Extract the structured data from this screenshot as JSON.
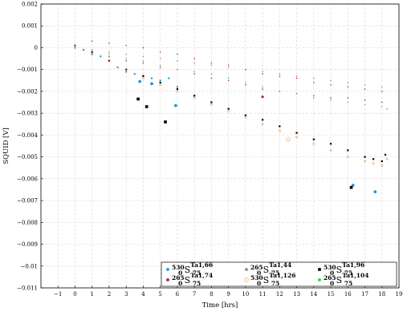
{
  "chart_data": {
    "type": "scatter",
    "xlabel": "Time [hrs]",
    "ylabel": "SQUID [V]",
    "xlim": [
      -2,
      19
    ],
    "ylim": [
      -0.011,
      0.002
    ],
    "x_ticks": [
      -1,
      0,
      1,
      2,
      3,
      4,
      5,
      6,
      7,
      8,
      9,
      10,
      11,
      12,
      13,
      14,
      15,
      16,
      17,
      18,
      19
    ],
    "y_ticks": [
      0.002,
      0.001,
      0,
      -0.001,
      -0.002,
      -0.003,
      -0.004,
      -0.005,
      -0.006,
      -0.007,
      -0.008,
      -0.009,
      -0.01,
      -0.011
    ],
    "x_tick_labels": [
      "−1",
      "0",
      "1",
      "2",
      "3",
      "4",
      "5",
      "6",
      "7",
      "8",
      "9",
      "10",
      "11",
      "12",
      "13",
      "14",
      "15",
      "16",
      "17",
      "18",
      "19"
    ],
    "y_tick_labels": [
      "0.002",
      "0.001",
      "0",
      "−0.001",
      "−0.002",
      "−0.003",
      "−0.004",
      "−0.005",
      "−0.006",
      "−0.007",
      "−0.008",
      "−0.009",
      "−0.01",
      "−0.011"
    ],
    "grid": true,
    "legend_position": "bottom-right",
    "series": [
      {
        "name": "530 0 S 75 Ta1,66",
        "label_parts": [
          "530",
          "0",
          "S",
          "Ta1,66",
          "75"
        ],
        "color": "#1e9bd7",
        "marker": "circle",
        "x": [
          0,
          0.5,
          1,
          1.5,
          2,
          2.5,
          3,
          3.5,
          4,
          4.5,
          5,
          5.5,
          6
        ],
        "y": [
          0,
          -0.0001,
          -0.0003,
          -0.0004,
          -0.0006,
          -0.0009,
          -0.0011,
          -0.0012,
          -0.0013,
          -0.0014,
          -0.0015,
          -0.0014,
          -0.0018
        ],
        "outliers": [
          [
            3.8,
            -0.00155
          ],
          [
            4.5,
            -0.00165
          ],
          [
            5.9,
            -0.00265
          ],
          [
            16.3,
            -0.0063
          ],
          [
            17.6,
            -0.0066
          ]
        ]
      },
      {
        "name": "265 0 S 75 Ta1,44",
        "label_parts": [
          "265",
          "0",
          "S",
          "Ta1,44",
          "75"
        ],
        "color": "#8a8a8a",
        "marker": "dot",
        "x": [
          0,
          1,
          2,
          3,
          4,
          5,
          6,
          7,
          8,
          9,
          10,
          11,
          12,
          13,
          14,
          15,
          16,
          17,
          18
        ],
        "y": [
          0,
          -0.0001,
          -0.0002,
          -0.0003,
          -0.0004,
          -0.0005,
          -0.0006,
          -0.0007,
          -0.0008,
          -0.0009,
          -0.001,
          -0.0011,
          -0.0012,
          -0.0013,
          -0.0014,
          -0.0015,
          -0.0016,
          -0.0017,
          -0.0018
        ]
      },
      {
        "name": "530 0 S 75 Ta1,96",
        "label_parts": [
          "530",
          "0",
          "S",
          "Ta1,96",
          "75"
        ],
        "color": "#000000",
        "marker": "square",
        "x": [
          0,
          1,
          2,
          3,
          4,
          5,
          6,
          7,
          8,
          9,
          10,
          11,
          12,
          13,
          14,
          15,
          16,
          17,
          17.5,
          18,
          18.2
        ],
        "y": [
          0.0001,
          -0.0002,
          -0.0006,
          -0.001,
          -0.0013,
          -0.0016,
          -0.0019,
          -0.0022,
          -0.0025,
          -0.0028,
          -0.0031,
          -0.0033,
          -0.0036,
          -0.0039,
          -0.0042,
          -0.0044,
          -0.0047,
          -0.005,
          -0.0051,
          -0.0052,
          -0.0049
        ],
        "outliers": [
          [
            3.7,
            -0.00235
          ],
          [
            4.2,
            -0.0027
          ],
          [
            5.3,
            -0.0034
          ],
          [
            16.2,
            -0.0064
          ]
        ]
      },
      {
        "name": "265 0 S 75 Ta1,74",
        "label_parts": [
          "265",
          "0",
          "S",
          "Ta1,74",
          "75"
        ],
        "color": "#b5175e",
        "marker": "dot",
        "x": [
          0,
          1,
          2,
          3,
          4,
          5,
          6,
          7,
          8,
          9,
          10,
          11,
          12,
          13,
          14,
          15,
          16,
          17,
          18
        ],
        "y": [
          0,
          -0.0002,
          -0.0004,
          -0.0006,
          -0.0007,
          -0.0009,
          -0.001,
          -0.0012,
          -0.0014,
          -0.0015,
          -0.0017,
          -0.0019,
          -0.002,
          -0.0021,
          -0.0022,
          -0.0023,
          -0.0023,
          -0.0024,
          -0.0025
        ],
        "outliers": [
          [
            11,
            -0.00225
          ]
        ]
      },
      {
        "name": "530 0 S 75 Ta1,126",
        "label_parts": [
          "530",
          "0",
          "S",
          "Ta1,126",
          "75"
        ],
        "color": "#f5a35a",
        "marker": "diamond",
        "x": [
          0,
          1,
          2,
          3,
          4,
          5,
          6,
          7,
          8,
          9,
          10,
          11,
          12,
          13,
          14,
          15,
          16,
          17,
          17.5,
          18,
          18.3
        ],
        "y": [
          0.0001,
          -0.0003,
          -0.0006,
          -0.001,
          -0.0014,
          -0.0017,
          -0.002,
          -0.0023,
          -0.0026,
          -0.0029,
          -0.0032,
          -0.0035,
          -0.0038,
          -0.0041,
          -0.0044,
          -0.0047,
          -0.005,
          -0.0052,
          -0.0053,
          -0.0054,
          -0.0051
        ],
        "outliers": [
          [
            12.5,
            -0.0042
          ]
        ]
      },
      {
        "name": "265 0 S 75 Ta1,104",
        "label_parts": [
          "265",
          "0",
          "S",
          "Ta1,104",
          "75"
        ],
        "color": "#2ecc2e",
        "marker": "dot",
        "x": [
          0,
          1,
          2,
          3,
          4,
          5,
          6,
          7,
          8,
          9,
          10,
          11,
          12,
          13,
          14,
          15,
          16,
          17,
          18,
          18.3
        ],
        "y": [
          0,
          -0.0001,
          -0.0003,
          -0.0005,
          -0.0006,
          -0.0008,
          -0.001,
          -0.0011,
          -0.0012,
          -0.0014,
          -0.0016,
          -0.0018,
          -0.002,
          -0.0021,
          -0.0023,
          -0.0024,
          -0.0025,
          -0.0026,
          -0.0027,
          -0.0028
        ]
      },
      {
        "name": "",
        "label_parts": [],
        "color": "#e01c1c",
        "marker": "dot",
        "x": [
          0,
          1,
          2,
          3,
          4,
          5,
          6,
          7,
          8,
          9,
          10,
          11,
          12,
          13,
          14,
          15,
          16,
          17,
          18
        ],
        "y": [
          0.0001,
          0.0003,
          0.0002,
          0.0001,
          0,
          -0.0002,
          -0.0003,
          -0.0005,
          -0.0007,
          -0.0008,
          -0.001,
          -0.0012,
          -0.0013,
          -0.0014,
          -0.0016,
          -0.0017,
          -0.0018,
          -0.0019,
          -0.002
        ]
      }
    ]
  }
}
